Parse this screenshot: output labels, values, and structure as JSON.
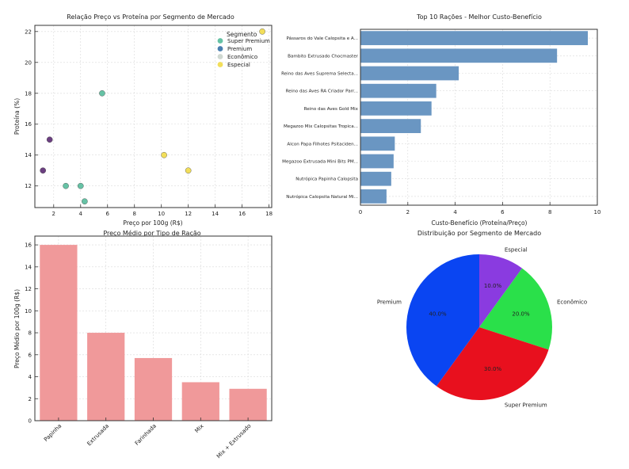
{
  "chart_data": [
    {
      "type": "scatter",
      "title": "Relação Preço vs Proteína por Segmento de Mercado",
      "xlabel": "Preço por 100g (R$)",
      "ylabel": "Proteína (%)",
      "xlim": [
        0.6,
        18.2
      ],
      "ylim": [
        10.6,
        22.4
      ],
      "xticks": [
        "2",
        "4",
        "6",
        "8",
        "10",
        "12",
        "14",
        "16",
        "18"
      ],
      "yticks": [
        "12",
        "14",
        "16",
        "18",
        "20",
        "22"
      ],
      "legend_title": "Segmento",
      "legend_position": "top-right",
      "legend": [
        {
          "name": "Super Premium",
          "color": "#66c2a5"
        },
        {
          "name": "Premium",
          "color": "#4a7fb0"
        },
        {
          "name": "Econômico",
          "color": "#cfd8d1"
        },
        {
          "name": "Especial",
          "color": "#f2de5a"
        }
      ],
      "points": [
        {
          "x": 1.2,
          "y": 13.0,
          "color": "#6b3f80"
        },
        {
          "x": 1.7,
          "y": 15.0,
          "color": "#6b3f80"
        },
        {
          "x": 2.9,
          "y": 12.0,
          "color": "#66c2a5"
        },
        {
          "x": 4.0,
          "y": 12.0,
          "color": "#66c2a5"
        },
        {
          "x": 4.3,
          "y": 11.0,
          "color": "#66c2a5"
        },
        {
          "x": 5.6,
          "y": 18.0,
          "color": "#66c2a5"
        },
        {
          "x": 10.2,
          "y": 14.0,
          "color": "#f2de5a"
        },
        {
          "x": 12.0,
          "y": 13.0,
          "color": "#f2de5a"
        },
        {
          "x": 17.5,
          "y": 22.0,
          "color": "#f2de5a"
        }
      ]
    },
    {
      "type": "bar",
      "orientation": "horizontal",
      "title": "Top 10 Rações - Melhor Custo-Benefício",
      "xlabel": "Custo-Benefício (Proteína/Preço)",
      "xlim": [
        0,
        10
      ],
      "xticks": [
        "0",
        "2",
        "4",
        "6",
        "8",
        "10"
      ],
      "color": "#6a96c2",
      "categories": [
        "Pássaros do Vale Calopsita e A...",
        "Bambito Extrusado Chocmaster",
        "Reino das Aves Suprema Selecta...",
        "Reino das Aves RA Criador Parr...",
        "Reino das Aves Gold Mix",
        "Megazoo Mix Calopsitas Tropica...",
        "Alcon Papa Filhotes Psitaciden...",
        "Megazoo Extrusada Mini Bits PM...",
        "Nutrópica Papinha Calopsita",
        "Nutrópica Calopsita Natural Mi..."
      ],
      "values": [
        9.6,
        8.3,
        4.15,
        3.2,
        3.0,
        2.55,
        1.45,
        1.4,
        1.3,
        1.1
      ]
    },
    {
      "type": "bar",
      "title": "Preço Médio por Tipo de Ração",
      "ylabel": "Preço Médio por 100g (R$)",
      "ylim": [
        0,
        16.8
      ],
      "yticks": [
        "0",
        "2",
        "4",
        "6",
        "8",
        "10",
        "12",
        "14",
        "16"
      ],
      "color": "#f0999a",
      "categories": [
        "Papinha",
        "Extrusada",
        "Farinhada",
        "Mix",
        "Mix + Extrusado"
      ],
      "values": [
        16.0,
        8.0,
        5.7,
        3.5,
        2.9
      ]
    },
    {
      "type": "pie",
      "title": "Distribuição por Segmento de Mercado",
      "slices": [
        {
          "label": "Especial",
          "value": 10.0,
          "pct": "10.0%",
          "color": "#8a3be0"
        },
        {
          "label": "Econômico",
          "value": 20.0,
          "pct": "20.0%",
          "color": "#2ae04a"
        },
        {
          "label": "Super Premium",
          "value": 30.0,
          "pct": "30.0%",
          "color": "#e8101e"
        },
        {
          "label": "Premium",
          "value": 40.0,
          "pct": "40.0%",
          "color": "#0a45f2"
        }
      ]
    }
  ]
}
